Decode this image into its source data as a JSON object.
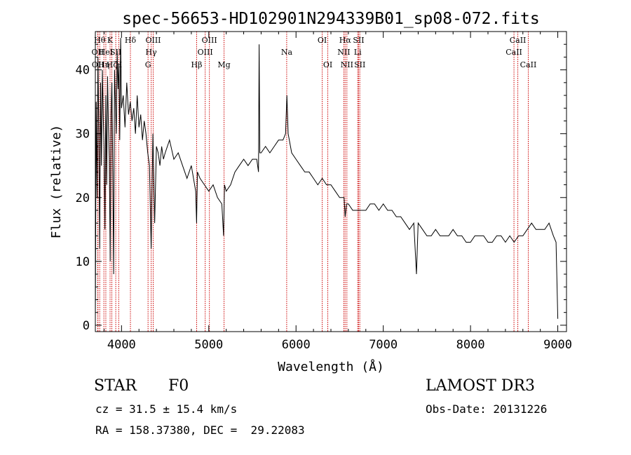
{
  "chart_data": {
    "type": "line",
    "title": "spec-56653-HD102901N294339B01_sp08-072.fits",
    "xlabel": "Wavelength (Å)",
    "ylabel": "Flux (relative)",
    "xlim": [
      3700,
      9100
    ],
    "ylim": [
      -1,
      46
    ],
    "xticks": [
      4000,
      5000,
      6000,
      7000,
      8000,
      9000
    ],
    "yticks": [
      0,
      10,
      20,
      30,
      40
    ],
    "series": [
      {
        "name": "spectrum",
        "x": [
          3700,
          3710,
          3720,
          3730,
          3740,
          3750,
          3760,
          3770,
          3780,
          3790,
          3800,
          3810,
          3820,
          3830,
          3840,
          3850,
          3860,
          3870,
          3880,
          3890,
          3900,
          3910,
          3920,
          3930,
          3940,
          3950,
          3960,
          3970,
          3980,
          3990,
          4000,
          4020,
          4040,
          4060,
          4080,
          4100,
          4120,
          4140,
          4160,
          4180,
          4200,
          4220,
          4240,
          4260,
          4280,
          4300,
          4320,
          4340,
          4360,
          4380,
          4400,
          4420,
          4440,
          4460,
          4480,
          4500,
          4550,
          4600,
          4650,
          4700,
          4750,
          4800,
          4850,
          4860,
          4870,
          4900,
          4950,
          5000,
          5050,
          5100,
          5150,
          5170,
          5180,
          5200,
          5250,
          5300,
          5350,
          5400,
          5450,
          5500,
          5550,
          5570,
          5577,
          5585,
          5600,
          5650,
          5700,
          5750,
          5800,
          5850,
          5880,
          5895,
          5910,
          5950,
          6000,
          6050,
          6100,
          6150,
          6200,
          6250,
          6300,
          6350,
          6400,
          6450,
          6500,
          6550,
          6563,
          6580,
          6600,
          6650,
          6700,
          6750,
          6800,
          6850,
          6900,
          6950,
          7000,
          7050,
          7100,
          7150,
          7200,
          7250,
          7300,
          7350,
          7380,
          7400,
          7450,
          7500,
          7550,
          7600,
          7650,
          7700,
          7750,
          7800,
          7850,
          7900,
          7950,
          8000,
          8050,
          8100,
          8150,
          8200,
          8250,
          8300,
          8350,
          8400,
          8450,
          8500,
          8550,
          8600,
          8650,
          8700,
          8750,
          8800,
          8850,
          8900,
          8950,
          8980,
          9000
        ],
        "y": [
          1,
          35,
          20,
          42,
          30,
          12,
          38,
          25,
          40,
          33,
          28,
          15,
          36,
          22,
          39,
          31,
          26,
          10,
          33,
          38,
          24,
          8,
          40,
          35,
          30,
          43,
          37,
          41,
          29,
          45,
          34,
          36,
          31,
          38,
          33,
          35,
          32,
          34,
          30,
          36,
          31,
          33,
          29,
          32,
          30,
          27,
          25,
          12,
          30,
          16,
          28,
          27,
          25,
          28,
          26,
          27,
          29,
          26,
          27,
          25,
          23,
          25,
          21,
          16,
          24,
          23,
          22,
          21,
          22,
          20,
          19,
          14,
          22,
          21,
          22,
          24,
          25,
          26,
          25,
          26,
          26,
          24,
          44,
          27,
          27,
          28,
          27,
          28,
          29,
          29,
          30,
          36,
          30,
          27,
          26,
          25,
          24,
          24,
          23,
          22,
          23,
          22,
          22,
          21,
          20,
          20,
          17,
          19,
          19,
          18,
          18,
          18,
          18,
          19,
          19,
          18,
          19,
          18,
          18,
          17,
          17,
          16,
          15,
          16,
          8,
          16,
          15,
          14,
          14,
          15,
          14,
          14,
          14,
          15,
          14,
          14,
          13,
          13,
          14,
          14,
          14,
          13,
          13,
          14,
          14,
          13,
          14,
          13,
          14,
          14,
          15,
          16,
          15,
          15,
          15,
          16,
          14,
          13,
          1
        ]
      }
    ],
    "lines": [
      {
        "wl": 3727,
        "label": "OII",
        "row": 2
      },
      {
        "wl": 3730,
        "label": "OII",
        "row": 3
      },
      {
        "wl": 3750,
        "label": "Hθ",
        "row": 1
      },
      {
        "wl": 3798,
        "label": "Hη",
        "row": 3
      },
      {
        "wl": 3820,
        "label": "HeI",
        "row": 2
      },
      {
        "wl": 3869,
        "label": "K",
        "row": 1
      },
      {
        "wl": 3889,
        "label": "Hζ",
        "row": 3
      },
      {
        "wl": 3934,
        "label": "SII",
        "row": 2
      },
      {
        "wl": 3968,
        "label": "H",
        "row": 3
      },
      {
        "wl": 4102,
        "label": "Hδ",
        "row": 1
      },
      {
        "wl": 4304,
        "label": "G",
        "row": 3
      },
      {
        "wl": 4340,
        "label": "Hγ",
        "row": 2
      },
      {
        "wl": 4363,
        "label": "OIII",
        "row": 1
      },
      {
        "wl": 4861,
        "label": "Hβ",
        "row": 3
      },
      {
        "wl": 4959,
        "label": "OIII",
        "row": 2
      },
      {
        "wl": 5007,
        "label": "OIII",
        "row": 1
      },
      {
        "wl": 5175,
        "label": "Mg",
        "row": 3
      },
      {
        "wl": 5893,
        "label": "Na",
        "row": 2
      },
      {
        "wl": 6300,
        "label": "OI",
        "row": 1
      },
      {
        "wl": 6364,
        "label": "OI",
        "row": 3
      },
      {
        "wl": 6548,
        "label": "NII",
        "row": 2
      },
      {
        "wl": 6563,
        "label": "Hα",
        "row": 1
      },
      {
        "wl": 6583,
        "label": "NII",
        "row": 3
      },
      {
        "wl": 6707,
        "label": "Li",
        "row": 2
      },
      {
        "wl": 6717,
        "label": "SII",
        "row": 1
      },
      {
        "wl": 6731,
        "label": "SII",
        "row": 3
      },
      {
        "wl": 8498,
        "label": "CaII",
        "row": 2
      },
      {
        "wl": 8542,
        "label": "CaII",
        "row": 1
      },
      {
        "wl": 8662,
        "label": "CaII",
        "row": 3
      }
    ]
  },
  "info": {
    "class": "STAR",
    "subclass": "F0",
    "survey": "LAMOST DR3",
    "cz": "cz = 31.5 ± 15.4 km/s",
    "obs_date": "Obs-Date: 20131226",
    "radec": "RA = 158.37380, DEC =  29.22083"
  },
  "colors": {
    "line": "#000000",
    "marker": "#cc0000"
  }
}
